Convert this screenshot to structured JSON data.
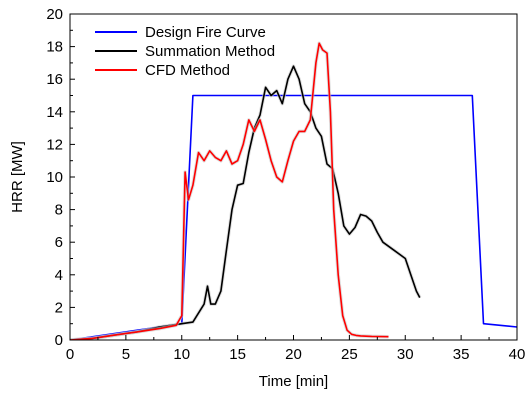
{
  "chart_data": {
    "type": "line",
    "title": "",
    "xlabel": "Time [min]",
    "ylabel": "HRR [MW]",
    "xlim": [
      0,
      40
    ],
    "ylim": [
      0,
      20
    ],
    "xticks": [
      0,
      5,
      10,
      15,
      20,
      25,
      30,
      35,
      40
    ],
    "yticks": [
      0,
      2,
      4,
      6,
      8,
      10,
      12,
      14,
      16,
      18,
      20
    ],
    "grid": false,
    "legend_position": "top-left",
    "series": [
      {
        "name": "Design Fire Curve",
        "color": "#0000ff",
        "x": [
          0,
          10.0,
          11.0,
          36.0,
          37.0,
          40.0
        ],
        "y": [
          0,
          1.0,
          15.0,
          15.0,
          1.0,
          0.8
        ]
      },
      {
        "name": "Summation Method",
        "color": "#000000",
        "x": [
          0,
          2,
          4,
          6,
          8,
          10,
          11,
          12,
          12.3,
          12.6,
          13,
          13.5,
          14,
          14.5,
          15,
          15.5,
          16,
          16.5,
          17,
          17.5,
          18,
          18.5,
          19,
          19.5,
          20,
          20.5,
          21,
          21.5,
          22,
          22.5,
          23,
          23.5,
          24,
          24.5,
          25,
          25.5,
          26,
          26.5,
          27,
          27.5,
          28,
          29,
          30,
          30.5,
          31,
          31.3
        ],
        "y": [
          0,
          0.1,
          0.3,
          0.5,
          0.8,
          1.0,
          1.1,
          2.2,
          3.3,
          2.2,
          2.2,
          3.0,
          5.5,
          8.0,
          9.5,
          9.6,
          11.5,
          13.0,
          13.8,
          15.5,
          15.0,
          15.3,
          14.5,
          16.0,
          16.8,
          16.0,
          14.5,
          14.0,
          13.0,
          12.5,
          10.8,
          10.5,
          9.0,
          7.0,
          6.5,
          6.9,
          7.7,
          7.6,
          7.3,
          6.6,
          6.0,
          5.5,
          5.0,
          4.0,
          3.0,
          2.6
        ]
      },
      {
        "name": "CFD Method",
        "color": "#ff0000",
        "x": [
          0,
          2,
          4,
          6,
          8,
          9.5,
          10,
          10.3,
          10.6,
          11,
          11.5,
          12,
          12.5,
          13,
          13.5,
          14,
          14.5,
          15,
          15.5,
          16,
          16.5,
          17,
          17.5,
          18,
          18.5,
          19,
          19.5,
          20,
          20.5,
          21,
          21.5,
          22,
          22.3,
          22.6,
          23,
          23.3,
          23.6,
          24,
          24.4,
          24.8,
          25.2,
          25.6,
          26,
          27,
          28.5
        ],
        "y": [
          0,
          0.1,
          0.3,
          0.5,
          0.7,
          0.9,
          1.5,
          10.3,
          8.6,
          9.5,
          11.5,
          11.0,
          11.6,
          11.2,
          11.0,
          11.6,
          10.8,
          11.0,
          12.0,
          13.5,
          12.8,
          13.5,
          12.3,
          11.0,
          10.0,
          9.7,
          11.0,
          12.2,
          12.8,
          12.8,
          13.5,
          17.0,
          18.2,
          17.8,
          17.6,
          14.0,
          8.0,
          4.0,
          1.5,
          0.6,
          0.35,
          0.28,
          0.25,
          0.22,
          0.2
        ]
      }
    ]
  }
}
